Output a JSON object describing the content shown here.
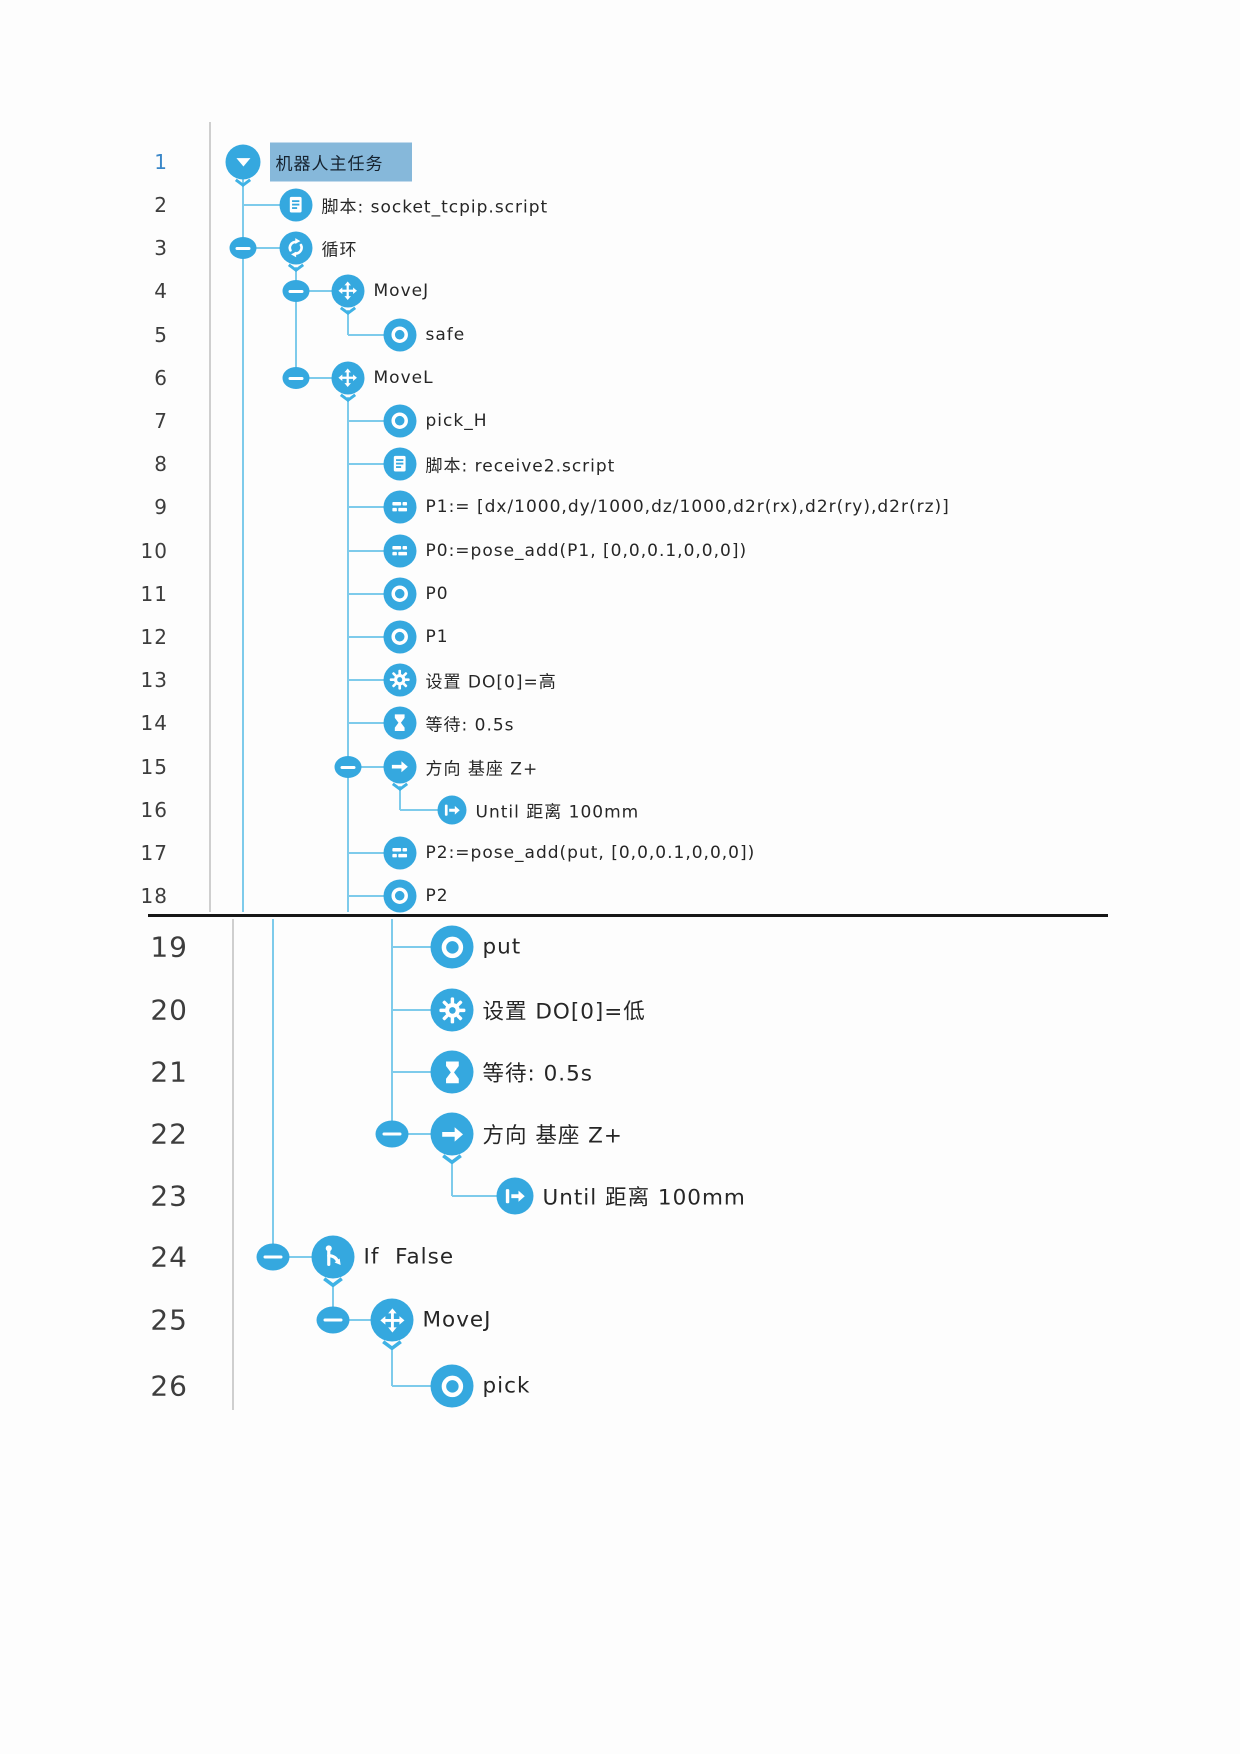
{
  "app": {
    "kind": "robot-program-tree",
    "selected_line": "1"
  },
  "colors": {
    "icon_blue": "#35a8df",
    "connector_blue": "#7ecbeb",
    "divider_gray": "#cfcfcf",
    "selection_highlight": "#86b8da",
    "selected_number": "#3a87c8",
    "number_gray": "#3d3d3d",
    "page_break_line": "#161616"
  },
  "program": {
    "rows": [
      {
        "n": "1",
        "section": "a",
        "level": 0,
        "icon": "flow-root-icon",
        "label": "机器人主任务",
        "has_children": true,
        "collapse_handle": false,
        "selected": true
      },
      {
        "n": "2",
        "section": "a",
        "level": 1,
        "icon": "script-icon",
        "label": "脚本: socket_tcpip.script",
        "has_children": false,
        "collapse_handle": false,
        "selected": false
      },
      {
        "n": "3",
        "section": "a",
        "level": 1,
        "icon": "loop-icon",
        "label": "循环",
        "has_children": true,
        "collapse_handle": true,
        "selected": false
      },
      {
        "n": "4",
        "section": "a",
        "level": 2,
        "icon": "move-icon",
        "label": "MoveJ",
        "has_children": true,
        "collapse_handle": true,
        "selected": false
      },
      {
        "n": "5",
        "section": "a",
        "level": 3,
        "icon": "waypoint-icon",
        "label": "safe",
        "has_children": false,
        "collapse_handle": false,
        "selected": false
      },
      {
        "n": "6",
        "section": "a",
        "level": 2,
        "icon": "move-icon",
        "label": "MoveL",
        "has_children": true,
        "collapse_handle": true,
        "selected": false
      },
      {
        "n": "7",
        "section": "a",
        "level": 3,
        "icon": "waypoint-icon",
        "label": "pick_H",
        "has_children": false,
        "collapse_handle": false,
        "selected": false
      },
      {
        "n": "8",
        "section": "a",
        "level": 3,
        "icon": "script-icon",
        "label": "脚本: receive2.script",
        "has_children": false,
        "collapse_handle": false,
        "selected": false
      },
      {
        "n": "9",
        "section": "a",
        "level": 3,
        "icon": "assign-icon",
        "label": "P1:= [dx/1000,dy/1000,dz/1000,d2r(rx),d2r(ry),d2r(rz)]",
        "has_children": false,
        "collapse_handle": false,
        "selected": false
      },
      {
        "n": "10",
        "section": "a",
        "level": 3,
        "icon": "assign-icon",
        "label": "P0:=pose_add(P1, [0,0,0.1,0,0,0])",
        "has_children": false,
        "collapse_handle": false,
        "selected": false
      },
      {
        "n": "11",
        "section": "a",
        "level": 3,
        "icon": "waypoint-icon",
        "label": "P0",
        "has_children": false,
        "collapse_handle": false,
        "selected": false
      },
      {
        "n": "12",
        "section": "a",
        "level": 3,
        "icon": "waypoint-icon",
        "label": "P1",
        "has_children": false,
        "collapse_handle": false,
        "selected": false
      },
      {
        "n": "13",
        "section": "a",
        "level": 3,
        "icon": "gear-icon",
        "label": "设置 DO[0]=高",
        "has_children": false,
        "collapse_handle": false,
        "selected": false
      },
      {
        "n": "14",
        "section": "a",
        "level": 3,
        "icon": "wait-icon",
        "label": "等待: 0.5s",
        "has_children": false,
        "collapse_handle": false,
        "selected": false
      },
      {
        "n": "15",
        "section": "a",
        "level": 3,
        "icon": "direction-icon",
        "label": "方向 基座 Z+",
        "has_children": true,
        "collapse_handle": true,
        "selected": false
      },
      {
        "n": "16",
        "section": "a",
        "level": 4,
        "icon": "until-icon",
        "label": "Until 距离 100mm",
        "has_children": false,
        "collapse_handle": false,
        "selected": false
      },
      {
        "n": "17",
        "section": "a",
        "level": 3,
        "icon": "assign-icon",
        "label": "P2:=pose_add(put, [0,0,0.1,0,0,0])",
        "has_children": false,
        "collapse_handle": false,
        "selected": false
      },
      {
        "n": "18",
        "section": "a",
        "level": 3,
        "icon": "waypoint-icon",
        "label": "P2",
        "has_children": false,
        "collapse_handle": false,
        "selected": false
      },
      {
        "n": "19",
        "section": "b",
        "level": 3,
        "icon": "waypoint-icon",
        "label": "put",
        "has_children": false,
        "collapse_handle": false,
        "selected": false
      },
      {
        "n": "20",
        "section": "b",
        "level": 3,
        "icon": "gear-icon",
        "label": "设置 DO[0]=低",
        "has_children": false,
        "collapse_handle": false,
        "selected": false
      },
      {
        "n": "21",
        "section": "b",
        "level": 3,
        "icon": "wait-icon",
        "label": "等待: 0.5s",
        "has_children": false,
        "collapse_handle": false,
        "selected": false
      },
      {
        "n": "22",
        "section": "b",
        "level": 3,
        "icon": "direction-icon",
        "label": "方向 基座 Z+",
        "has_children": true,
        "collapse_handle": true,
        "selected": false
      },
      {
        "n": "23",
        "section": "b",
        "level": 4,
        "icon": "until-icon",
        "label": "Until 距离 100mm",
        "has_children": false,
        "collapse_handle": false,
        "selected": false
      },
      {
        "n": "24",
        "section": "b",
        "level": 1,
        "icon": "if-branch-icon",
        "label": "If  False",
        "has_children": true,
        "collapse_handle": true,
        "selected": false
      },
      {
        "n": "25",
        "section": "b",
        "level": 2,
        "icon": "move-icon",
        "label": "MoveJ",
        "has_children": true,
        "collapse_handle": true,
        "selected": false
      },
      {
        "n": "26",
        "section": "b",
        "level": 3,
        "icon": "waypoint-icon",
        "label": "pick",
        "has_children": false,
        "collapse_handle": false,
        "selected": false
      }
    ]
  }
}
